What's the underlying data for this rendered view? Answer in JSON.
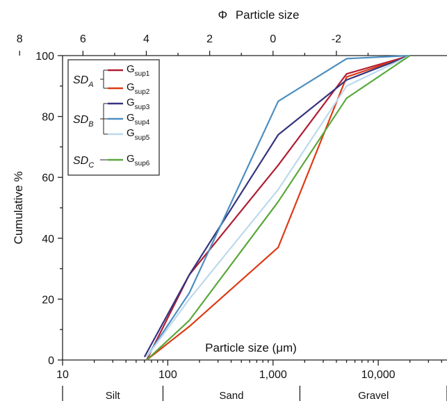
{
  "chart_data": {
    "type": "line",
    "title": "",
    "xlabel": "Particle size (μm)",
    "x2label": "Φ Particle size",
    "x2symbol": "Φ",
    "x2text": "Particle size",
    "ylabel": "Cumulative %",
    "xscale": "log",
    "xlim": [
      10,
      45000
    ],
    "ylim": [
      0,
      100
    ],
    "x_ticks": [
      {
        "value": 10,
        "label": "10"
      },
      {
        "value": 100,
        "label": "100"
      },
      {
        "value": 1000,
        "label": "1,000"
      },
      {
        "value": 10000,
        "label": "10,000"
      }
    ],
    "x2_ticks": [
      {
        "value": 8,
        "label": "8"
      },
      {
        "value": 6,
        "label": "6"
      },
      {
        "value": 4,
        "label": "4"
      },
      {
        "value": 2,
        "label": "2"
      },
      {
        "value": 0,
        "label": "0"
      },
      {
        "value": -2,
        "label": "-2"
      }
    ],
    "y_ticks": [
      {
        "value": 0,
        "label": "0"
      },
      {
        "value": 20,
        "label": "20"
      },
      {
        "value": 40,
        "label": "40"
      },
      {
        "value": 60,
        "label": "60"
      },
      {
        "value": 80,
        "label": "80"
      },
      {
        "value": 100,
        "label": "100"
      }
    ],
    "size_classes": [
      {
        "label": "Silt",
        "from": 10,
        "to": 90
      },
      {
        "label": "Sand",
        "from": 90,
        "to": 1800
      },
      {
        "label": "Gravel",
        "from": 1800,
        "to": 45000
      }
    ],
    "legend_groups": [
      {
        "base": "SD",
        "sub": "A",
        "series": [
          "Gsup1",
          "Gsup2"
        ]
      },
      {
        "base": "SD",
        "sub": "B",
        "series": [
          "Gsup3",
          "Gsup4",
          "Gsup5"
        ]
      },
      {
        "base": "SD",
        "sub": "C",
        "series": [
          "Gsup6"
        ]
      }
    ],
    "legend_position": "top-left",
    "grid": false,
    "series": [
      {
        "name": "Gsup1",
        "base": "G",
        "sub": "sup1",
        "color": "#b01c32",
        "x": [
          63,
          160,
          1120,
          5000,
          20000
        ],
        "y": [
          0,
          28,
          64,
          94,
          100
        ]
      },
      {
        "name": "Gsup2",
        "base": "G",
        "sub": "sup2",
        "color": "#dd3a12",
        "x": [
          63,
          160,
          1120,
          5000,
          20000
        ],
        "y": [
          0,
          11,
          37,
          93,
          100
        ]
      },
      {
        "name": "Gsup3",
        "base": "G",
        "sub": "sup3",
        "color": "#35337e",
        "x": [
          60,
          160,
          1120,
          5000,
          20000
        ],
        "y": [
          1,
          28,
          74,
          92,
          100
        ]
      },
      {
        "name": "Gsup4",
        "base": "G",
        "sub": "sup4",
        "color": "#4c8ec0",
        "x": [
          63,
          160,
          1120,
          5000,
          20000
        ],
        "y": [
          1,
          22,
          85,
          99,
          100
        ]
      },
      {
        "name": "Gsup5",
        "base": "G",
        "sub": "sup5",
        "color": "#bcd9ec",
        "x": [
          63,
          160,
          1120,
          5000,
          20000
        ],
        "y": [
          1,
          20,
          56,
          90,
          100
        ]
      },
      {
        "name": "Gsup6",
        "base": "G",
        "sub": "sup6",
        "color": "#58a83a",
        "x": [
          63,
          160,
          1120,
          5000,
          20000
        ],
        "y": [
          0,
          13,
          52,
          86,
          100
        ]
      }
    ]
  }
}
